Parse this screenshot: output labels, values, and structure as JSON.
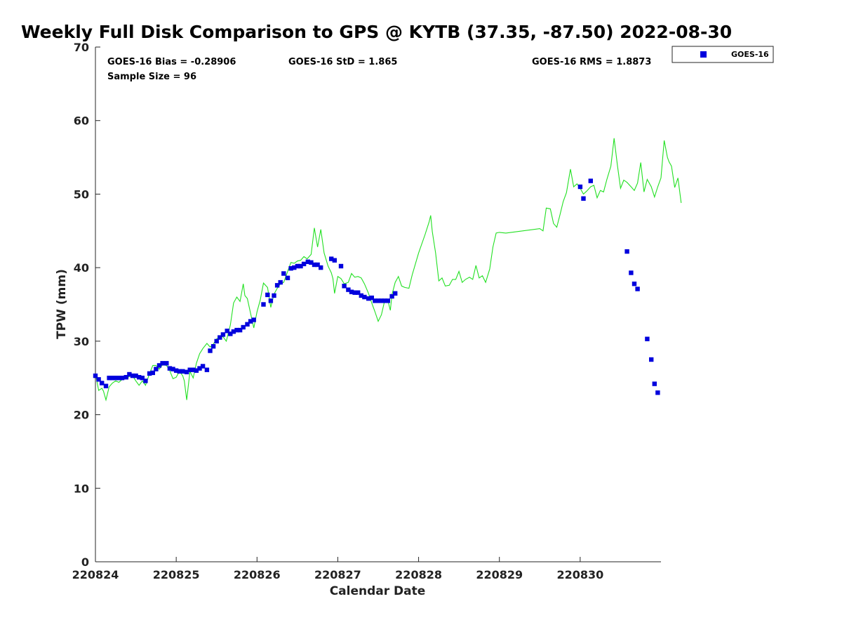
{
  "chart_data": {
    "type": "scatter",
    "title": "Weekly Full Disk Comparison to GPS @ KYTB (37.35, -87.50) 2022-08-30",
    "xlabel": "Calendar Date",
    "ylabel": "TPW (mm)",
    "xlim": [
      220824,
      220831
    ],
    "ylim": [
      0,
      70
    ],
    "x_ticks": [
      "220824",
      "220825",
      "220826",
      "220827",
      "220828",
      "220829",
      "220830"
    ],
    "y_ticks": [
      "0",
      "10",
      "20",
      "30",
      "40",
      "50",
      "60",
      "70"
    ],
    "grid": false,
    "legend_position": "top-right",
    "stats": {
      "bias": "GOES-16 Bias = -0.28906",
      "std": "GOES-16 StD = 1.865",
      "rms": "GOES-16 RMS = 1.8873",
      "sample_size": "Sample Size = 96"
    },
    "series": [
      {
        "name": "GOES-16",
        "kind": "markers",
        "color": "#0000dd",
        "points": [
          [
            0.0,
            25.3
          ],
          [
            0.04,
            24.8
          ],
          [
            0.08,
            24.3
          ],
          [
            0.13,
            23.9
          ],
          [
            0.17,
            25.0
          ],
          [
            0.21,
            25.0
          ],
          [
            0.25,
            25.0
          ],
          [
            0.29,
            25.0
          ],
          [
            0.33,
            25.0
          ],
          [
            0.38,
            25.1
          ],
          [
            0.42,
            25.5
          ],
          [
            0.46,
            25.3
          ],
          [
            0.5,
            25.3
          ],
          [
            0.54,
            25.1
          ],
          [
            0.58,
            25.0
          ],
          [
            0.62,
            24.6
          ],
          [
            0.67,
            25.6
          ],
          [
            0.71,
            25.7
          ],
          [
            0.75,
            26.2
          ],
          [
            0.79,
            26.7
          ],
          [
            0.83,
            27.0
          ],
          [
            0.88,
            27.0
          ],
          [
            0.92,
            26.3
          ],
          [
            0.96,
            26.2
          ],
          [
            1.0,
            26.0
          ],
          [
            1.04,
            25.9
          ],
          [
            1.08,
            25.9
          ],
          [
            1.13,
            25.8
          ],
          [
            1.17,
            26.1
          ],
          [
            1.21,
            26.1
          ],
          [
            1.25,
            26.0
          ],
          [
            1.29,
            26.3
          ],
          [
            1.33,
            26.6
          ],
          [
            1.38,
            26.1
          ],
          [
            1.42,
            28.7
          ],
          [
            1.46,
            29.3
          ],
          [
            1.5,
            30.0
          ],
          [
            1.54,
            30.5
          ],
          [
            1.58,
            30.9
          ],
          [
            1.63,
            31.4
          ],
          [
            1.67,
            31.0
          ],
          [
            1.71,
            31.3
          ],
          [
            1.75,
            31.5
          ],
          [
            1.79,
            31.5
          ],
          [
            1.83,
            31.9
          ],
          [
            1.88,
            32.3
          ],
          [
            1.92,
            32.7
          ],
          [
            1.96,
            32.9
          ],
          [
            2.08,
            35.0
          ],
          [
            2.13,
            36.3
          ],
          [
            2.17,
            35.5
          ],
          [
            2.21,
            36.2
          ],
          [
            2.25,
            37.6
          ],
          [
            2.29,
            38.0
          ],
          [
            2.33,
            39.2
          ],
          [
            2.38,
            38.6
          ],
          [
            2.42,
            39.9
          ],
          [
            2.46,
            40.0
          ],
          [
            2.5,
            40.2
          ],
          [
            2.54,
            40.2
          ],
          [
            2.58,
            40.5
          ],
          [
            2.63,
            40.8
          ],
          [
            2.67,
            40.7
          ],
          [
            2.71,
            40.4
          ],
          [
            2.75,
            40.4
          ],
          [
            2.79,
            40.0
          ],
          [
            2.92,
            41.2
          ],
          [
            2.96,
            41.0
          ],
          [
            3.04,
            40.2
          ],
          [
            3.08,
            37.5
          ],
          [
            3.13,
            37.0
          ],
          [
            3.17,
            36.7
          ],
          [
            3.21,
            36.6
          ],
          [
            3.25,
            36.6
          ],
          [
            3.29,
            36.2
          ],
          [
            3.33,
            36.0
          ],
          [
            3.38,
            35.8
          ],
          [
            3.42,
            35.9
          ],
          [
            3.46,
            35.5
          ],
          [
            3.5,
            35.5
          ],
          [
            3.54,
            35.5
          ],
          [
            3.58,
            35.5
          ],
          [
            3.62,
            35.5
          ],
          [
            3.67,
            36.1
          ],
          [
            3.71,
            36.5
          ],
          [
            6.0,
            51.0
          ],
          [
            6.04,
            49.4
          ],
          [
            6.13,
            51.8
          ],
          [
            6.58,
            42.2
          ],
          [
            6.63,
            39.3
          ],
          [
            6.67,
            37.8
          ],
          [
            6.71,
            37.1
          ],
          [
            6.83,
            30.3
          ],
          [
            6.88,
            27.5
          ],
          [
            6.92,
            24.2
          ],
          [
            6.96,
            23.0
          ]
        ]
      },
      {
        "kind": "line",
        "color": "#22e022",
        "points": [
          [
            0.0,
            25.6
          ],
          [
            0.04,
            23.3
          ],
          [
            0.08,
            23.6
          ],
          [
            0.1,
            23.2
          ],
          [
            0.13,
            22.0
          ],
          [
            0.17,
            23.8
          ],
          [
            0.21,
            24.3
          ],
          [
            0.25,
            24.6
          ],
          [
            0.29,
            24.4
          ],
          [
            0.33,
            24.8
          ],
          [
            0.38,
            24.9
          ],
          [
            0.42,
            25.2
          ],
          [
            0.46,
            25.3
          ],
          [
            0.5,
            24.6
          ],
          [
            0.54,
            24.0
          ],
          [
            0.58,
            24.6
          ],
          [
            0.62,
            24.0
          ],
          [
            0.67,
            25.6
          ],
          [
            0.71,
            26.7
          ],
          [
            0.75,
            26.7
          ],
          [
            0.79,
            26.2
          ],
          [
            0.83,
            26.8
          ],
          [
            0.88,
            26.7
          ],
          [
            0.92,
            26.0
          ],
          [
            0.96,
            24.9
          ],
          [
            1.0,
            25.1
          ],
          [
            1.04,
            25.9
          ],
          [
            1.08,
            25.3
          ],
          [
            1.1,
            24.6
          ],
          [
            1.13,
            22.0
          ],
          [
            1.17,
            25.9
          ],
          [
            1.21,
            25.0
          ],
          [
            1.25,
            27.0
          ],
          [
            1.29,
            28.3
          ],
          [
            1.33,
            29.0
          ],
          [
            1.38,
            29.7
          ],
          [
            1.42,
            29.2
          ],
          [
            1.46,
            29.6
          ],
          [
            1.5,
            30.3
          ],
          [
            1.54,
            30.6
          ],
          [
            1.58,
            30.6
          ],
          [
            1.62,
            30.0
          ],
          [
            1.67,
            32.2
          ],
          [
            1.71,
            35.2
          ],
          [
            1.75,
            36.0
          ],
          [
            1.79,
            35.4
          ],
          [
            1.83,
            37.8
          ],
          [
            1.85,
            36.2
          ],
          [
            1.88,
            35.8
          ],
          [
            1.92,
            33.8
          ],
          [
            1.96,
            31.8
          ],
          [
            2.0,
            34.0
          ],
          [
            2.04,
            35.6
          ],
          [
            2.08,
            37.9
          ],
          [
            2.13,
            37.3
          ],
          [
            2.17,
            34.6
          ],
          [
            2.21,
            36.4
          ],
          [
            2.25,
            37.2
          ],
          [
            2.29,
            37.8
          ],
          [
            2.33,
            38.0
          ],
          [
            2.38,
            39.5
          ],
          [
            2.42,
            40.7
          ],
          [
            2.46,
            40.6
          ],
          [
            2.5,
            40.9
          ],
          [
            2.54,
            41.0
          ],
          [
            2.58,
            41.5
          ],
          [
            2.62,
            41.2
          ],
          [
            2.67,
            41.8
          ],
          [
            2.71,
            45.4
          ],
          [
            2.75,
            42.8
          ],
          [
            2.79,
            45.2
          ],
          [
            2.83,
            42.0
          ],
          [
            2.88,
            40.2
          ],
          [
            2.92,
            39.3
          ],
          [
            2.94,
            38.5
          ],
          [
            2.96,
            36.5
          ],
          [
            3.0,
            38.8
          ],
          [
            3.04,
            38.5
          ],
          [
            3.08,
            37.8
          ],
          [
            3.13,
            38.0
          ],
          [
            3.17,
            39.2
          ],
          [
            3.21,
            38.7
          ],
          [
            3.25,
            38.8
          ],
          [
            3.29,
            38.6
          ],
          [
            3.33,
            37.8
          ],
          [
            3.38,
            36.5
          ],
          [
            3.42,
            35.2
          ],
          [
            3.46,
            34.0
          ],
          [
            3.5,
            32.7
          ],
          [
            3.54,
            33.6
          ],
          [
            3.58,
            35.5
          ],
          [
            3.62,
            35.5
          ],
          [
            3.65,
            34.2
          ],
          [
            3.67,
            36.3
          ],
          [
            3.71,
            38.0
          ],
          [
            3.75,
            38.8
          ],
          [
            3.79,
            37.5
          ],
          [
            3.83,
            37.3
          ],
          [
            3.88,
            37.2
          ],
          [
            3.92,
            39.0
          ],
          [
            4.0,
            42.0
          ],
          [
            4.08,
            44.5
          ],
          [
            4.13,
            46.2
          ],
          [
            4.15,
            47.1
          ],
          [
            4.17,
            44.9
          ],
          [
            4.21,
            42.0
          ],
          [
            4.25,
            38.2
          ],
          [
            4.29,
            38.6
          ],
          [
            4.33,
            37.5
          ],
          [
            4.38,
            37.6
          ],
          [
            4.42,
            38.4
          ],
          [
            4.46,
            38.4
          ],
          [
            4.5,
            39.5
          ],
          [
            4.54,
            38.0
          ],
          [
            4.58,
            38.4
          ],
          [
            4.63,
            38.7
          ],
          [
            4.67,
            38.4
          ],
          [
            4.71,
            40.3
          ],
          [
            4.75,
            38.6
          ],
          [
            4.79,
            38.9
          ],
          [
            4.83,
            38.0
          ],
          [
            4.88,
            39.8
          ],
          [
            4.92,
            42.8
          ],
          [
            4.96,
            44.7
          ],
          [
            5.0,
            44.8
          ],
          [
            5.08,
            44.7
          ],
          [
            5.5,
            45.3
          ],
          [
            5.54,
            45.0
          ],
          [
            5.58,
            48.1
          ],
          [
            5.63,
            48.0
          ],
          [
            5.67,
            46.0
          ],
          [
            5.71,
            45.5
          ],
          [
            5.75,
            47.2
          ],
          [
            5.79,
            49.0
          ],
          [
            5.83,
            50.2
          ],
          [
            5.88,
            53.4
          ],
          [
            5.92,
            51.0
          ],
          [
            5.96,
            51.4
          ],
          [
            6.0,
            50.8
          ],
          [
            6.04,
            50.0
          ],
          [
            6.08,
            50.4
          ],
          [
            6.13,
            51.0
          ],
          [
            6.17,
            51.2
          ],
          [
            6.21,
            49.5
          ],
          [
            6.25,
            50.5
          ],
          [
            6.29,
            50.3
          ],
          [
            6.33,
            52.0
          ],
          [
            6.38,
            53.8
          ],
          [
            6.42,
            57.6
          ],
          [
            6.46,
            54.0
          ],
          [
            6.5,
            50.8
          ],
          [
            6.54,
            51.9
          ],
          [
            6.58,
            51.6
          ],
          [
            6.63,
            51.0
          ],
          [
            6.67,
            50.5
          ],
          [
            6.71,
            51.5
          ],
          [
            6.75,
            54.3
          ],
          [
            6.79,
            50.3
          ],
          [
            6.83,
            52.0
          ],
          [
            6.88,
            51.0
          ],
          [
            6.92,
            49.6
          ],
          [
            6.96,
            51.0
          ],
          [
            7.0,
            52.2
          ],
          [
            7.04,
            57.3
          ],
          [
            7.08,
            55.0
          ],
          [
            7.1,
            54.4
          ],
          [
            7.13,
            53.8
          ],
          [
            7.17,
            50.9
          ],
          [
            7.21,
            52.2
          ],
          [
            7.25,
            48.8
          ]
        ]
      }
    ]
  }
}
